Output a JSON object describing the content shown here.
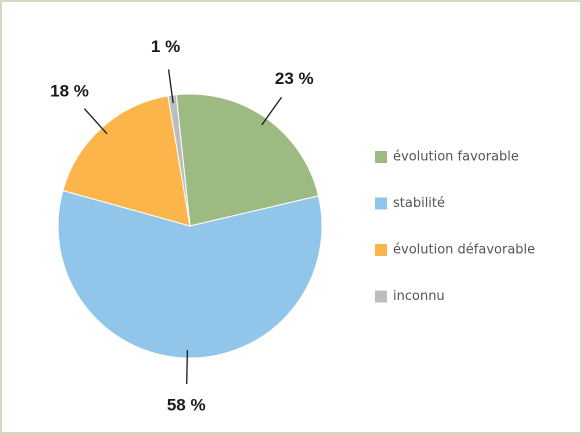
{
  "chart_data": {
    "type": "pie",
    "categories": [
      "évolution favorable",
      "stabilité",
      "évolution défavorable",
      "inconnu"
    ],
    "values": [
      23,
      58,
      18,
      1
    ],
    "value_labels": [
      "23 %",
      "58 %",
      "18 %",
      "1 %"
    ],
    "colors": [
      "#9dba82",
      "#92c5ea",
      "#fbb54b",
      "#bdbdbd"
    ],
    "legend": "right"
  }
}
